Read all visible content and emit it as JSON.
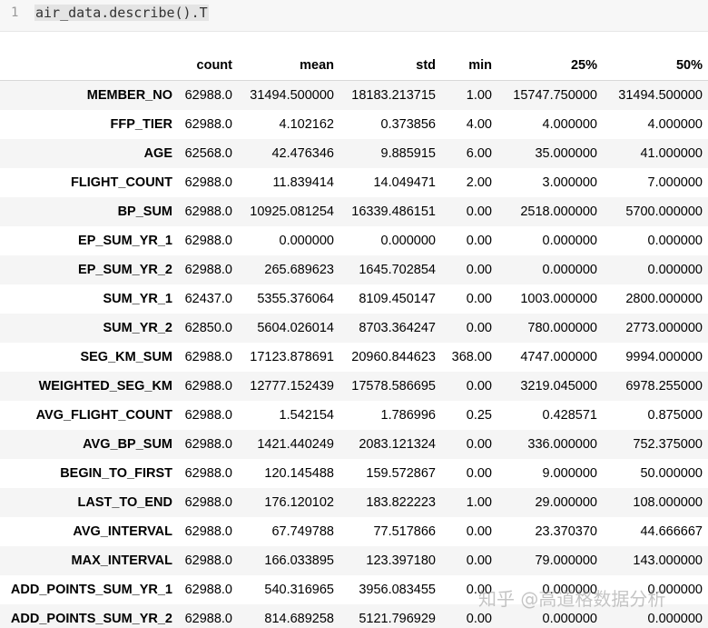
{
  "cell": {
    "line_number": "1",
    "code": "air_data.describe().T"
  },
  "table": {
    "columns": [
      "",
      "count",
      "mean",
      "std",
      "min",
      "25%",
      "50%"
    ],
    "rows": [
      {
        "label": "MEMBER_NO",
        "values": [
          "62988.0",
          "31494.500000",
          "18183.213715",
          "1.00",
          "15747.750000",
          "31494.500000"
        ]
      },
      {
        "label": "FFP_TIER",
        "values": [
          "62988.0",
          "4.102162",
          "0.373856",
          "4.00",
          "4.000000",
          "4.000000"
        ]
      },
      {
        "label": "AGE",
        "values": [
          "62568.0",
          "42.476346",
          "9.885915",
          "6.00",
          "35.000000",
          "41.000000"
        ]
      },
      {
        "label": "FLIGHT_COUNT",
        "values": [
          "62988.0",
          "11.839414",
          "14.049471",
          "2.00",
          "3.000000",
          "7.000000"
        ]
      },
      {
        "label": "BP_SUM",
        "values": [
          "62988.0",
          "10925.081254",
          "16339.486151",
          "0.00",
          "2518.000000",
          "5700.000000"
        ]
      },
      {
        "label": "EP_SUM_YR_1",
        "values": [
          "62988.0",
          "0.000000",
          "0.000000",
          "0.00",
          "0.000000",
          "0.000000"
        ]
      },
      {
        "label": "EP_SUM_YR_2",
        "values": [
          "62988.0",
          "265.689623",
          "1645.702854",
          "0.00",
          "0.000000",
          "0.000000"
        ]
      },
      {
        "label": "SUM_YR_1",
        "values": [
          "62437.0",
          "5355.376064",
          "8109.450147",
          "0.00",
          "1003.000000",
          "2800.000000"
        ]
      },
      {
        "label": "SUM_YR_2",
        "values": [
          "62850.0",
          "5604.026014",
          "8703.364247",
          "0.00",
          "780.000000",
          "2773.000000"
        ]
      },
      {
        "label": "SEG_KM_SUM",
        "values": [
          "62988.0",
          "17123.878691",
          "20960.844623",
          "368.00",
          "4747.000000",
          "9994.000000"
        ]
      },
      {
        "label": "WEIGHTED_SEG_KM",
        "values": [
          "62988.0",
          "12777.152439",
          "17578.586695",
          "0.00",
          "3219.045000",
          "6978.255000"
        ]
      },
      {
        "label": "AVG_FLIGHT_COUNT",
        "values": [
          "62988.0",
          "1.542154",
          "1.786996",
          "0.25",
          "0.428571",
          "0.875000"
        ]
      },
      {
        "label": "AVG_BP_SUM",
        "values": [
          "62988.0",
          "1421.440249",
          "2083.121324",
          "0.00",
          "336.000000",
          "752.375000"
        ]
      },
      {
        "label": "BEGIN_TO_FIRST",
        "values": [
          "62988.0",
          "120.145488",
          "159.572867",
          "0.00",
          "9.000000",
          "50.000000"
        ]
      },
      {
        "label": "LAST_TO_END",
        "values": [
          "62988.0",
          "176.120102",
          "183.822223",
          "1.00",
          "29.000000",
          "108.000000"
        ]
      },
      {
        "label": "AVG_INTERVAL",
        "values": [
          "62988.0",
          "67.749788",
          "77.517866",
          "0.00",
          "23.370370",
          "44.666667"
        ]
      },
      {
        "label": "MAX_INTERVAL",
        "values": [
          "62988.0",
          "166.033895",
          "123.397180",
          "0.00",
          "79.000000",
          "143.000000"
        ]
      },
      {
        "label": "ADD_POINTS_SUM_YR_1",
        "values": [
          "62988.0",
          "540.316965",
          "3956.083455",
          "0.00",
          "0.000000",
          "0.000000"
        ]
      },
      {
        "label": "ADD_POINTS_SUM_YR_2",
        "values": [
          "62988.0",
          "814.689258",
          "5121.796929",
          "0.00",
          "0.000000",
          "0.000000"
        ]
      }
    ]
  },
  "watermark": "知乎 @高道格数据分析"
}
